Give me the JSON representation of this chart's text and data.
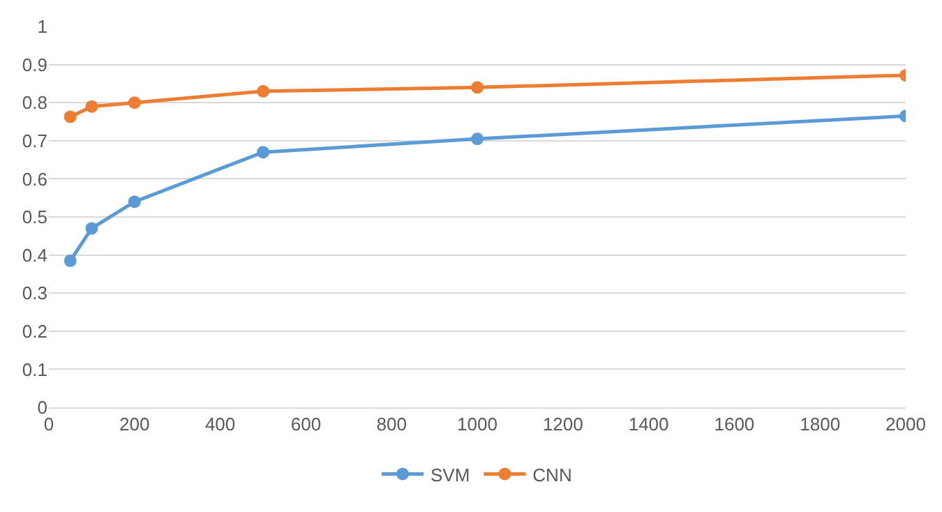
{
  "chart_data": {
    "type": "line",
    "x": [
      50,
      100,
      200,
      500,
      1000,
      2000
    ],
    "series": [
      {
        "name": "SVM",
        "color": "#5b9bd5",
        "values": [
          0.385,
          0.47,
          0.54,
          0.67,
          0.705,
          0.765
        ]
      },
      {
        "name": "CNN",
        "color": "#ed7d31",
        "values": [
          0.763,
          0.79,
          0.8,
          0.83,
          0.84,
          0.872
        ]
      }
    ],
    "xlim": [
      0,
      2000
    ],
    "xticks": [
      0,
      200,
      400,
      600,
      800,
      1000,
      1200,
      1400,
      1600,
      1800,
      2000
    ],
    "ylim": [
      0,
      1
    ],
    "yticks": [
      0,
      0.1,
      0.2,
      0.3,
      0.4,
      0.5,
      0.6,
      0.7,
      0.8,
      0.9,
      1
    ],
    "grid": "y",
    "legend": "bottom",
    "marker": "circle",
    "line_style": "solid"
  }
}
